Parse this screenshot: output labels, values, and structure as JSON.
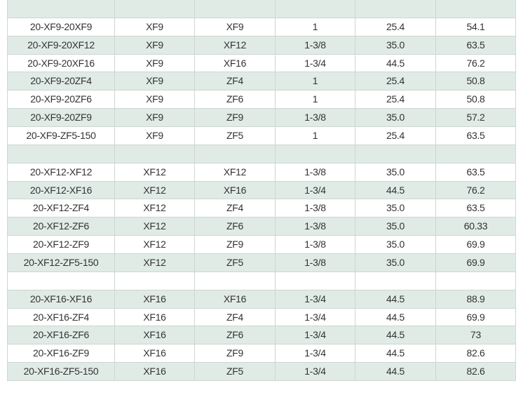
{
  "table": {
    "groups": [
      [
        [
          "20-XF9-20XF9",
          "XF9",
          "XF9",
          "1",
          "25.4",
          "54.1"
        ],
        [
          "20-XF9-20XF12",
          "XF9",
          "XF12",
          "1-3/8",
          "35.0",
          "63.5"
        ],
        [
          "20-XF9-20XF16",
          "XF9",
          "XF16",
          "1-3/4",
          "44.5",
          "76.2"
        ],
        [
          "20-XF9-20ZF4",
          "XF9",
          "ZF4",
          "1",
          "25.4",
          "50.8"
        ],
        [
          "20-XF9-20ZF6",
          "XF9",
          "ZF6",
          "1",
          "25.4",
          "50.8"
        ],
        [
          "20-XF9-20ZF9",
          "XF9",
          "ZF9",
          "1-3/8",
          "35.0",
          "57.2"
        ],
        [
          "20-XF9-ZF5-150",
          "XF9",
          "ZF5",
          "1",
          "25.4",
          "63.5"
        ]
      ],
      [
        [
          "20-XF12-XF12",
          "XF12",
          "XF12",
          "1-3/8",
          "35.0",
          "63.5"
        ],
        [
          "20-XF12-XF16",
          "XF12",
          "XF16",
          "1-3/4",
          "44.5",
          "76.2"
        ],
        [
          "20-XF12-ZF4",
          "XF12",
          "ZF4",
          "1-3/8",
          "35.0",
          "63.5"
        ],
        [
          "20-XF12-ZF6",
          "XF12",
          "ZF6",
          "1-3/8",
          "35.0",
          "60.33"
        ],
        [
          "20-XF12-ZF9",
          "XF12",
          "ZF9",
          "1-3/8",
          "35.0",
          "69.9"
        ],
        [
          "20-XF12-ZF5-150",
          "XF12",
          "ZF5",
          "1-3/8",
          "35.0",
          "69.9"
        ]
      ],
      [
        [
          "20-XF16-XF16",
          "XF16",
          "XF16",
          "1-3/4",
          "44.5",
          "88.9"
        ],
        [
          "20-XF16-ZF4",
          "XF16",
          "ZF4",
          "1-3/4",
          "44.5",
          "69.9"
        ],
        [
          "20-XF16-ZF6",
          "XF16",
          "ZF6",
          "1-3/4",
          "44.5",
          "73"
        ],
        [
          "20-XF16-ZF9",
          "XF16",
          "ZF9",
          "1-3/4",
          "44.5",
          "82.6"
        ],
        [
          "20-XF16-ZF5-150",
          "XF16",
          "ZF5",
          "1-3/4",
          "44.5",
          "82.6"
        ]
      ]
    ]
  }
}
